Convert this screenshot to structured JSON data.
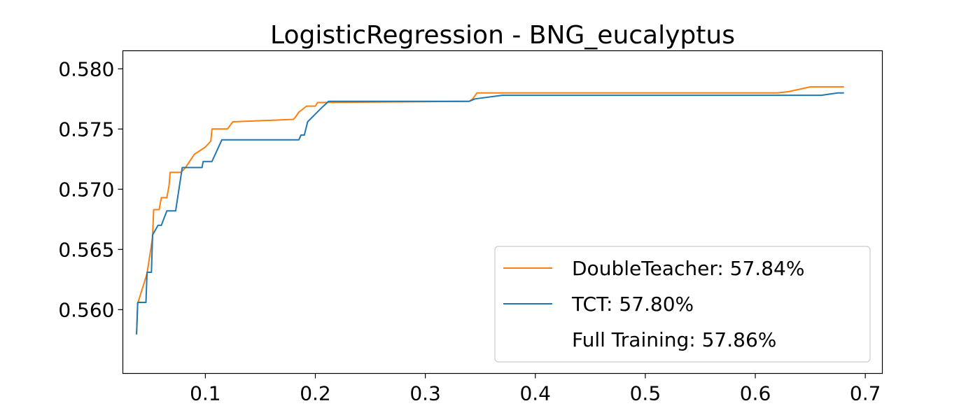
{
  "chart_data": {
    "type": "line",
    "title": "LogisticRegression - BNG_eucalyptus",
    "xlabel": "",
    "ylabel": "",
    "xlim": [
      0.025,
      0.7155
    ],
    "ylim": [
      0.5547,
      0.5815
    ],
    "xticks": [
      0.1,
      0.2,
      0.3,
      0.4,
      0.5,
      0.6,
      0.7
    ],
    "xtick_labels": [
      "0.1",
      "0.2",
      "0.3",
      "0.4",
      "0.5",
      "0.6",
      "0.7"
    ],
    "yticks": [
      0.56,
      0.565,
      0.57,
      0.575,
      0.58
    ],
    "ytick_labels": [
      "0.560",
      "0.565",
      "0.570",
      "0.575",
      "0.580"
    ],
    "grid": false,
    "legend_position": "lower-right",
    "legend": [
      {
        "label": "DoubleTeacher: 57.84%",
        "color": "#ff7f0e",
        "line": true
      },
      {
        "label": "TCT: 57.80%",
        "color": "#1f77b4",
        "line": true
      },
      {
        "label": "Full Training: 57.86%",
        "color": "none",
        "line": false
      }
    ],
    "series": [
      {
        "name": "DoubleTeacher: 57.84%",
        "color": "#ff7f0e",
        "points": [
          [
            0.0375,
            0.558
          ],
          [
            0.0385,
            0.5605
          ],
          [
            0.047,
            0.563
          ],
          [
            0.052,
            0.566
          ],
          [
            0.053,
            0.5683
          ],
          [
            0.058,
            0.5683
          ],
          [
            0.06,
            0.5693
          ],
          [
            0.065,
            0.5693
          ],
          [
            0.067,
            0.5703
          ],
          [
            0.068,
            0.5714
          ],
          [
            0.078,
            0.5714
          ],
          [
            0.082,
            0.5718
          ],
          [
            0.09,
            0.5729
          ],
          [
            0.1,
            0.5735
          ],
          [
            0.105,
            0.574
          ],
          [
            0.106,
            0.575
          ],
          [
            0.12,
            0.575
          ],
          [
            0.125,
            0.5756
          ],
          [
            0.18,
            0.5758
          ],
          [
            0.182,
            0.576
          ],
          [
            0.185,
            0.5764
          ],
          [
            0.192,
            0.5769
          ],
          [
            0.2,
            0.5769
          ],
          [
            0.202,
            0.5772
          ],
          [
            0.34,
            0.5773
          ],
          [
            0.343,
            0.5775
          ],
          [
            0.347,
            0.578
          ],
          [
            0.6,
            0.578
          ],
          [
            0.62,
            0.578
          ],
          [
            0.63,
            0.5781
          ],
          [
            0.64,
            0.5783
          ],
          [
            0.65,
            0.5785
          ],
          [
            0.68,
            0.5785
          ]
        ]
      },
      {
        "name": "TCT: 57.80%",
        "color": "#1f77b4",
        "points": [
          [
            0.0375,
            0.558
          ],
          [
            0.0385,
            0.5606
          ],
          [
            0.046,
            0.5606
          ],
          [
            0.047,
            0.5631
          ],
          [
            0.051,
            0.5631
          ],
          [
            0.052,
            0.5662
          ],
          [
            0.057,
            0.567
          ],
          [
            0.06,
            0.567
          ],
          [
            0.065,
            0.5682
          ],
          [
            0.073,
            0.5682
          ],
          [
            0.079,
            0.5718
          ],
          [
            0.097,
            0.5718
          ],
          [
            0.098,
            0.5723
          ],
          [
            0.106,
            0.5723
          ],
          [
            0.115,
            0.5741
          ],
          [
            0.185,
            0.5741
          ],
          [
            0.187,
            0.5745
          ],
          [
            0.19,
            0.5745
          ],
          [
            0.193,
            0.5756
          ],
          [
            0.205,
            0.5767
          ],
          [
            0.212,
            0.5773
          ],
          [
            0.34,
            0.5773
          ],
          [
            0.345,
            0.5775
          ],
          [
            0.37,
            0.5778
          ],
          [
            0.66,
            0.5778
          ],
          [
            0.675,
            0.578
          ],
          [
            0.68,
            0.578
          ]
        ]
      }
    ]
  }
}
